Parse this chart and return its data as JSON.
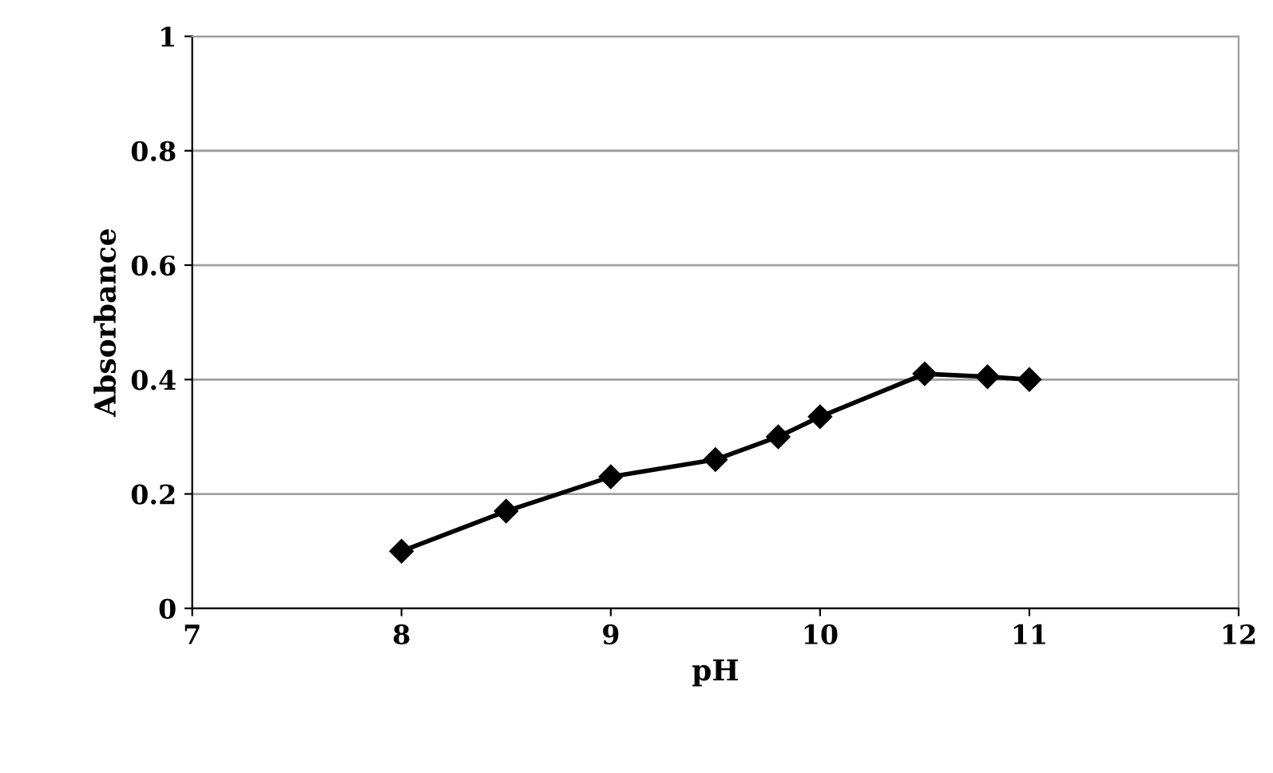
{
  "chart_data": {
    "type": "line",
    "xlabel": "pH",
    "ylabel": "Absorbance",
    "x": [
      8,
      8.5,
      9,
      9.5,
      9.8,
      10,
      10.5,
      10.8,
      11
    ],
    "series": [
      {
        "color": "#000000",
        "values": [
          0.1,
          0.17,
          0.23,
          0.26,
          0.3,
          0.335,
          0.41,
          0.405,
          0.4
        ]
      }
    ],
    "xlim": [
      7,
      12
    ],
    "xticks": [
      7,
      8,
      9,
      10,
      11,
      12
    ],
    "ylim": [
      0,
      1
    ],
    "yticks": [
      0,
      0.2,
      0.4,
      0.6,
      0.8,
      1
    ],
    "grid": "y",
    "marker": "diamond",
    "line_style": "solid",
    "legend": false
  }
}
